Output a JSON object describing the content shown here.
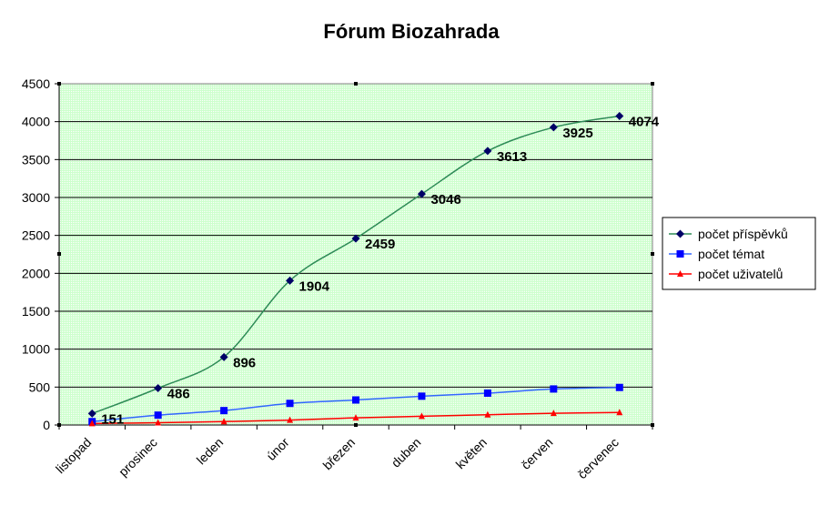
{
  "chart_data": {
    "type": "line",
    "title": "Fórum Biozahrada",
    "xlabel": "",
    "ylabel": "",
    "categories": [
      "listopad",
      "prosinec",
      "leden",
      "únor",
      "březen",
      "duben",
      "květen",
      "červen",
      "červenec"
    ],
    "ylim": [
      0,
      4500
    ],
    "yticks": [
      0,
      500,
      1000,
      1500,
      2000,
      2500,
      3000,
      3500,
      4000,
      4500
    ],
    "grid": true,
    "legend_position": "right",
    "plot_background": "#ccffcc",
    "series": [
      {
        "name": "počet příspěvků",
        "color": "#2e8b57",
        "marker_color": "#000066",
        "marker": "diamond",
        "values": [
          151,
          486,
          896,
          1904,
          2459,
          3046,
          3613,
          3925,
          4074
        ],
        "data_labels": [
          "151",
          "486",
          "896",
          "1904",
          "2459",
          "3046",
          "3613",
          "3925",
          "4074"
        ]
      },
      {
        "name": "počet témat",
        "color": "#3366ff",
        "marker_color": "#0000ff",
        "marker": "square",
        "values": [
          45,
          130,
          190,
          285,
          330,
          380,
          420,
          475,
          495
        ]
      },
      {
        "name": "počet uživatelů",
        "color": "#ff0000",
        "marker_color": "#ff0000",
        "marker": "triangle",
        "values": [
          20,
          30,
          45,
          65,
          95,
          115,
          135,
          155,
          165
        ]
      }
    ]
  }
}
